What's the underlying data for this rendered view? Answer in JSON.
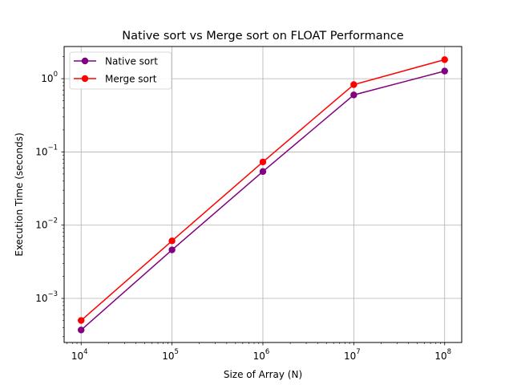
{
  "chart_data": {
    "type": "line",
    "title": "Native sort vs Merge sort on FLOAT Performance",
    "xlabel": "Size of Array (N)",
    "ylabel": "Execution Time (seconds)",
    "x_scale": "log",
    "y_scale": "log",
    "x": [
      10000,
      100000,
      1000000,
      10000000,
      100000000
    ],
    "x_ticks": [
      {
        "base": "10",
        "exp": "4",
        "value": 10000
      },
      {
        "base": "10",
        "exp": "5",
        "value": 100000
      },
      {
        "base": "10",
        "exp": "6",
        "value": 1000000
      },
      {
        "base": "10",
        "exp": "7",
        "value": 10000000
      },
      {
        "base": "10",
        "exp": "8",
        "value": 100000000
      }
    ],
    "y_ticks": [
      {
        "base": "10",
        "exp": "−3",
        "value": 0.001
      },
      {
        "base": "10",
        "exp": "−2",
        "value": 0.01
      },
      {
        "base": "10",
        "exp": "−1",
        "value": 0.1
      },
      {
        "base": "10",
        "exp": "0",
        "value": 1
      }
    ],
    "xlim": [
      6500,
      154000000
    ],
    "ylim": [
      0.00025,
      2.75
    ],
    "grid": true,
    "legend_position": "top-left",
    "series": [
      {
        "name": "Native sort",
        "color": "#800080",
        "values": [
          0.00037,
          0.0046,
          0.054,
          0.6,
          1.27
        ]
      },
      {
        "name": "Merge sort",
        "color": "#ff0000",
        "values": [
          0.0005,
          0.0061,
          0.073,
          0.83,
          1.82
        ]
      }
    ]
  }
}
